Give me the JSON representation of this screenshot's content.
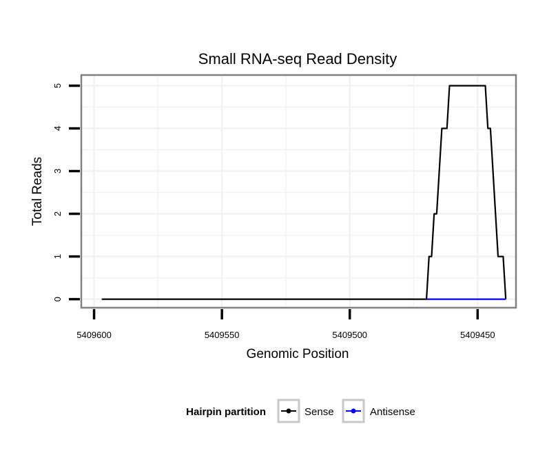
{
  "chart_data": {
    "type": "line",
    "title": "Small RNA-seq Read Density",
    "xlabel": "Genomic Position",
    "ylabel": "Total Reads",
    "x_reversed": true,
    "xlim": [
      5409605,
      5409435
    ],
    "ylim": [
      -0.2,
      5.25
    ],
    "x_ticks": [
      5409600,
      5409550,
      5409500,
      5409450
    ],
    "x_tick_labels": [
      "5409600",
      "5409550",
      "5409500",
      "5409450"
    ],
    "y_ticks": [
      0,
      1,
      2,
      3,
      4,
      5
    ],
    "y_tick_labels": [
      "0",
      "1",
      "2",
      "3",
      "4",
      "5"
    ],
    "grid": true,
    "legend": {
      "title": "Hairpin partition",
      "position": "bottom",
      "entries": [
        "Sense",
        "Antisense"
      ]
    },
    "series": [
      {
        "name": "Sense",
        "color": "#000000",
        "x": [
          5409597,
          5409470,
          5409469,
          5409468,
          5409467,
          5409466,
          5409464,
          5409463,
          5409462,
          5409461,
          5409459,
          5409458,
          5409457,
          5409453,
          5409447,
          5409446,
          5409445,
          5409444,
          5409443,
          5409442,
          5409441,
          5409440,
          5409439
        ],
        "values": [
          0,
          0,
          1,
          1,
          2,
          2,
          4,
          4,
          4,
          5,
          5,
          5,
          5,
          5,
          5,
          4,
          4,
          3,
          2,
          1,
          1,
          1,
          0
        ]
      },
      {
        "name": "Antisense",
        "color": "#0000ff",
        "x": [
          5409470,
          5409439
        ],
        "values": [
          0,
          0
        ]
      }
    ]
  }
}
